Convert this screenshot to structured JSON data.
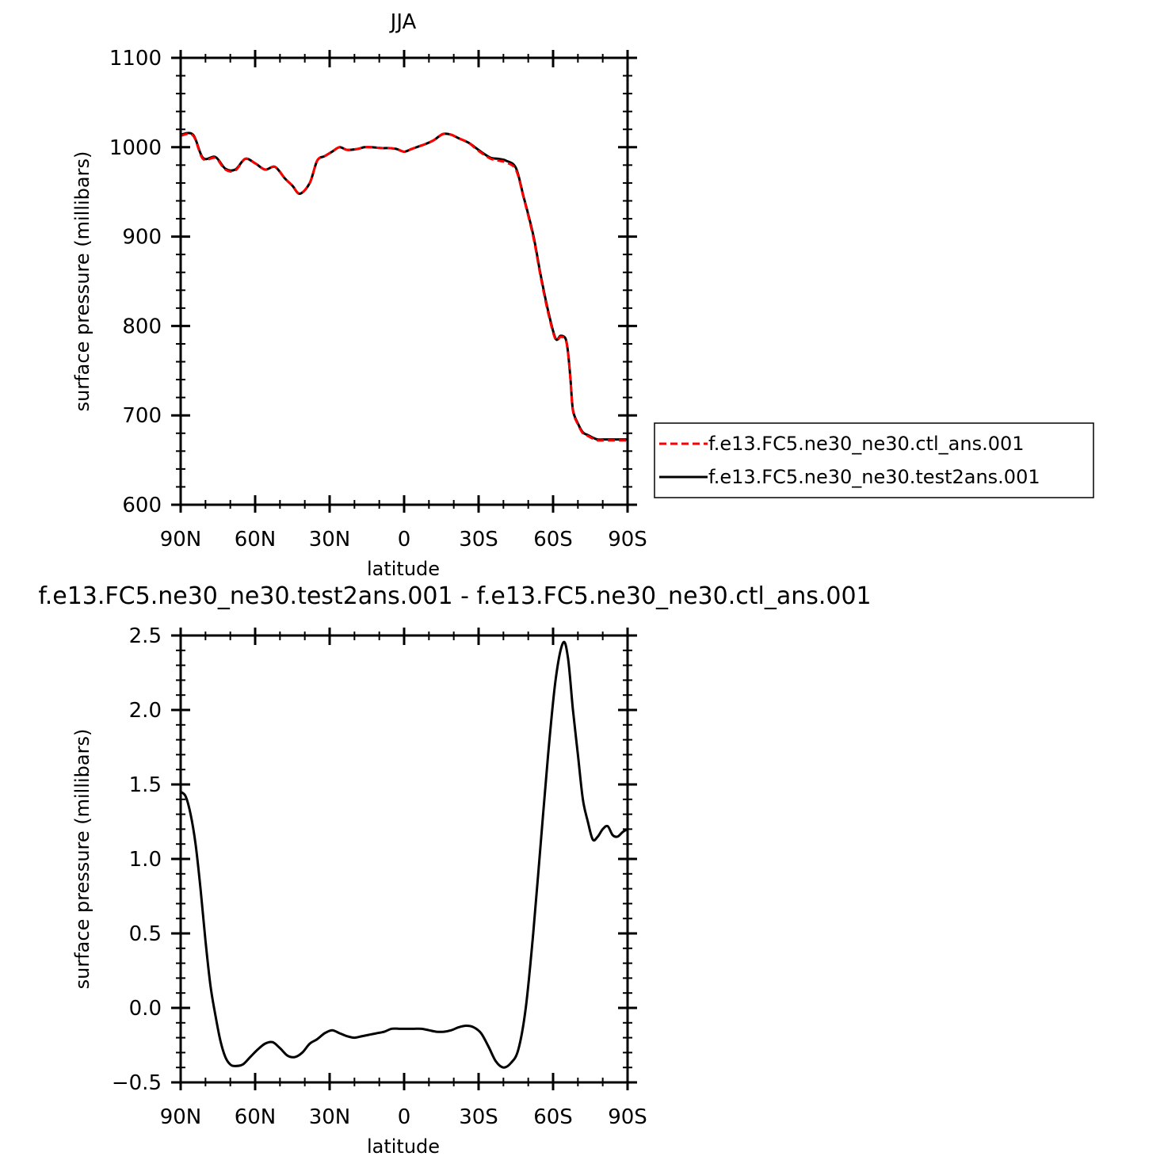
{
  "chart_data": [
    {
      "type": "line",
      "title": "JJA",
      "xlabel": "latitude",
      "ylabel": "surface pressure (millibars)",
      "xlim": [
        -90,
        90
      ],
      "ylim": [
        600,
        1100
      ],
      "x_ticks": [
        -90,
        -60,
        -30,
        0,
        30,
        60,
        90
      ],
      "x_tick_labels": [
        "90N",
        "60N",
        "30N",
        "0",
        "30S",
        "60S",
        "90S"
      ],
      "y_ticks": [
        600,
        700,
        800,
        900,
        1000,
        1100
      ],
      "y_tick_labels": [
        "600",
        "700",
        "800",
        "900",
        "1000",
        "1100"
      ],
      "legend_position": "right",
      "series": [
        {
          "name": "f.e13.FC5.ne30_ne30.ctl_ans.001",
          "color": "#ff0000",
          "dash": "dashed",
          "x": [
            -90,
            -85,
            -81,
            -76,
            -72,
            -68,
            -64,
            -60,
            -56,
            -52,
            -48,
            -45,
            -42,
            -38,
            -35,
            -32,
            -29,
            -26,
            -23,
            -19,
            -16,
            -13,
            -9,
            -6,
            -3,
            0,
            3,
            6,
            9,
            12,
            14,
            16,
            19,
            22,
            26,
            29,
            32,
            35,
            38,
            41,
            45,
            48,
            52,
            55,
            58,
            61,
            63,
            65,
            66,
            67,
            68,
            70,
            72,
            74,
            76,
            78,
            80,
            82,
            84,
            86,
            88,
            90
          ],
          "y": [
            1013,
            1013,
            987,
            988,
            975,
            974,
            987,
            982,
            975,
            978,
            965,
            957,
            948,
            960,
            985,
            990,
            995,
            1000,
            997,
            998,
            1000,
            1000,
            999,
            999,
            998,
            995,
            998,
            1001,
            1004,
            1008,
            1012,
            1015,
            1014,
            1010,
            1005,
            998,
            992,
            987,
            985,
            983,
            975,
            945,
            900,
            855,
            815,
            785,
            788,
            785,
            770,
            740,
            705,
            690,
            680,
            677,
            674,
            672,
            672,
            672,
            672,
            672,
            672,
            672
          ]
        },
        {
          "name": "f.e13.FC5.ne30_ne30.test2ans.001",
          "color": "#000000",
          "dash": "solid",
          "x": [
            -90,
            -85,
            -81,
            -76,
            -72,
            -68,
            -64,
            -60,
            -56,
            -52,
            -48,
            -45,
            -42,
            -38,
            -35,
            -32,
            -29,
            -26,
            -23,
            -19,
            -16,
            -13,
            -9,
            -6,
            -3,
            0,
            3,
            6,
            9,
            12,
            14,
            16,
            19,
            22,
            26,
            29,
            32,
            35,
            38,
            41,
            45,
            48,
            52,
            55,
            58,
            61,
            63,
            65,
            66,
            67,
            68,
            70,
            72,
            74,
            76,
            78,
            80,
            82,
            84,
            86,
            88,
            90
          ],
          "y": [
            1014,
            1014,
            988,
            989,
            976,
            975,
            987,
            982,
            975,
            978,
            965,
            957,
            948,
            960,
            985,
            990,
            995,
            1000,
            997,
            998,
            1000,
            1000,
            999,
            999,
            998,
            995,
            998,
            1001,
            1004,
            1008,
            1012,
            1015,
            1014,
            1010,
            1005,
            999,
            993,
            988,
            987,
            985,
            977,
            946,
            902,
            857,
            817,
            786,
            789,
            786,
            771,
            741,
            706,
            691,
            681,
            678,
            675,
            673,
            673,
            673,
            673,
            673,
            673,
            673
          ]
        }
      ]
    },
    {
      "type": "line",
      "title": "f.e13.FC5.ne30_ne30.test2ans.001 - f.e13.FC5.ne30_ne30.ctl_ans.001",
      "xlabel": "latitude",
      "ylabel": "surface pressure (millibars)",
      "xlim": [
        -90,
        90
      ],
      "ylim": [
        -0.5,
        2.5
      ],
      "x_ticks": [
        -90,
        -60,
        -30,
        0,
        30,
        60,
        90
      ],
      "x_tick_labels": [
        "90N",
        "60N",
        "30N",
        "0",
        "30S",
        "60S",
        "90S"
      ],
      "y_ticks": [
        -0.5,
        0.0,
        0.5,
        1.0,
        1.5,
        2.0,
        2.5
      ],
      "y_tick_labels": [
        "−0.5",
        "0.0",
        "0.5",
        "1.0",
        "1.5",
        "2.0",
        "2.5"
      ],
      "series": [
        {
          "color": "#000000",
          "dash": "solid",
          "x": [
            -90,
            -88,
            -86,
            -84,
            -82,
            -80,
            -78,
            -76,
            -74,
            -72,
            -70,
            -68,
            -65,
            -62,
            -59,
            -56,
            -53,
            -50,
            -47,
            -44,
            -41,
            -38,
            -35,
            -32,
            -29,
            -26,
            -23,
            -20,
            -17,
            -14,
            -11,
            -8,
            -5,
            -2,
            1,
            4,
            7,
            10,
            13,
            16,
            19,
            22,
            25,
            28,
            31,
            34,
            37,
            40,
            43,
            46,
            49,
            52,
            55,
            58,
            61,
            64,
            66,
            68,
            70,
            72,
            74,
            76,
            78,
            80,
            82,
            84,
            86,
            88,
            90
          ],
          "y": [
            1.45,
            1.42,
            1.3,
            1.1,
            0.8,
            0.45,
            0.15,
            -0.05,
            -0.22,
            -0.33,
            -0.38,
            -0.39,
            -0.38,
            -0.33,
            -0.28,
            -0.24,
            -0.23,
            -0.27,
            -0.32,
            -0.33,
            -0.3,
            -0.24,
            -0.21,
            -0.17,
            -0.15,
            -0.17,
            -0.19,
            -0.2,
            -0.19,
            -0.18,
            -0.17,
            -0.16,
            -0.14,
            -0.14,
            -0.14,
            -0.14,
            -0.14,
            -0.15,
            -0.16,
            -0.16,
            -0.15,
            -0.13,
            -0.12,
            -0.13,
            -0.17,
            -0.26,
            -0.36,
            -0.4,
            -0.37,
            -0.28,
            0.0,
            0.5,
            1.1,
            1.7,
            2.2,
            2.45,
            2.35,
            2.0,
            1.7,
            1.4,
            1.25,
            1.13,
            1.15,
            1.2,
            1.22,
            1.16,
            1.15,
            1.18,
            1.2
          ]
        }
      ]
    }
  ]
}
